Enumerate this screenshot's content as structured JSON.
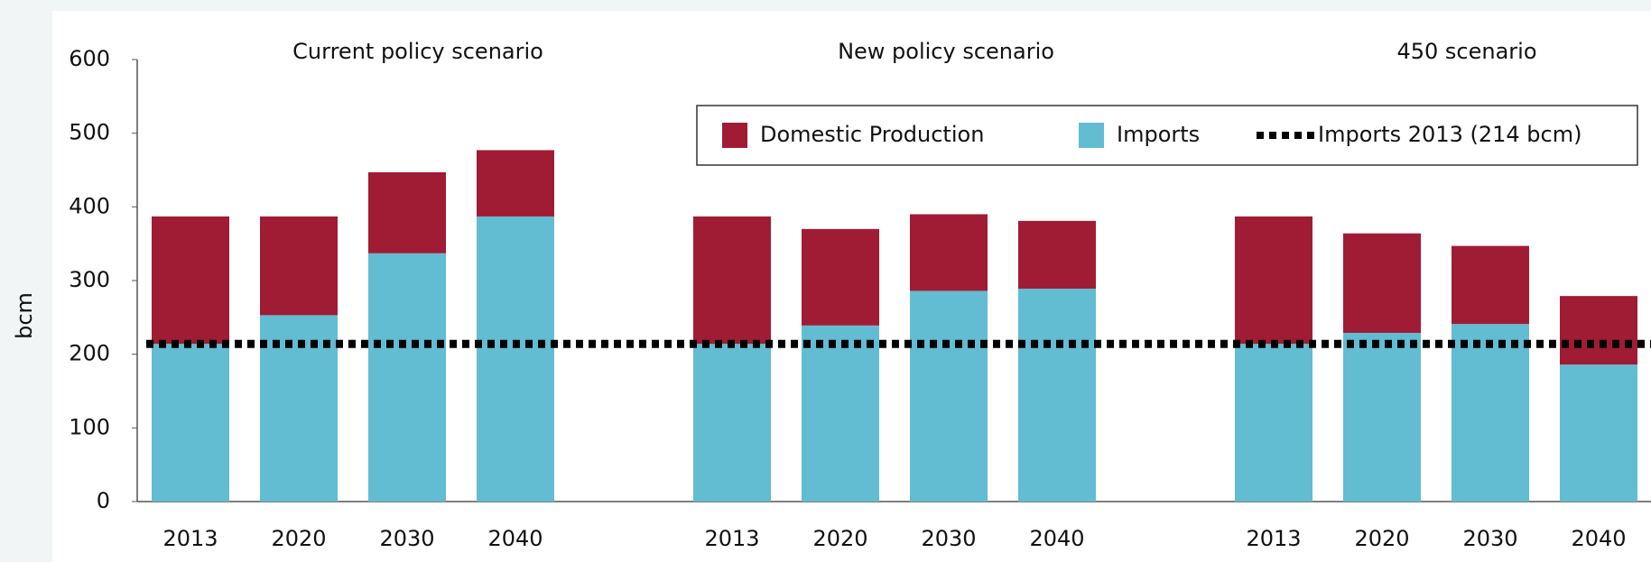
{
  "chart_data": {
    "type": "stacked_bar",
    "ylabel": "bcm",
    "group_titles": [
      "Current policy scenario",
      "New policy scenario",
      "450 scenario"
    ],
    "categories": [
      "2013",
      "2020",
      "2030",
      "2040",
      "2013",
      "2020",
      "2030",
      "2040",
      "2013",
      "2020",
      "2030",
      "2040"
    ],
    "series": [
      {
        "name": "Imports",
        "color": "#62bcd2",
        "values": [
          214,
          253,
          337,
          387,
          214,
          239,
          286,
          289,
          214,
          229,
          241,
          186
        ]
      },
      {
        "name": "Domestic Production",
        "color": "#a01c35",
        "values": [
          173,
          134,
          110,
          90,
          173,
          131,
          104,
          92,
          173,
          135,
          106,
          93
        ]
      }
    ],
    "reference": {
      "name": "Imports 2013 (214 bcm)",
      "value": 214,
      "color": "#000000"
    },
    "ylim": [
      0,
      600
    ],
    "yticks": [
      0,
      100,
      200,
      300,
      400,
      500,
      600
    ]
  }
}
